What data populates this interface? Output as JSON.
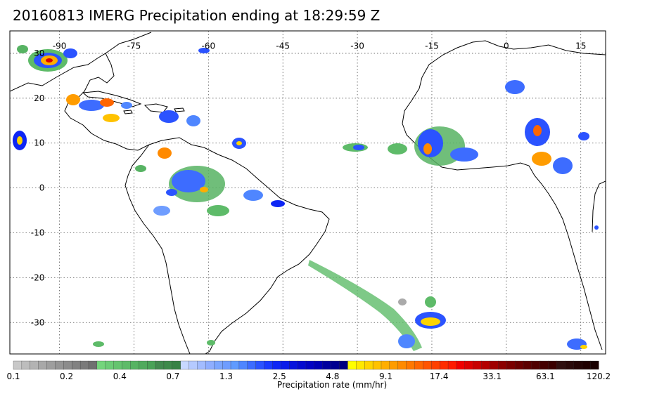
{
  "title": "20160813 IMERG Precipitation ending at 18:29:59 Z",
  "map": {
    "lon_labels": [
      "-90",
      "-75",
      "-60",
      "-45",
      "-30",
      "-15",
      "0",
      "15"
    ],
    "lat_labels": [
      "30",
      "20",
      "10",
      "0",
      "-10",
      "-20",
      "-30"
    ],
    "lon_range": [
      -100,
      20
    ],
    "lat_range": [
      -37,
      35
    ],
    "gridlines": "dotted"
  },
  "colorbar": {
    "label": "Precipitation rate (mm/hr)",
    "tick_labels": [
      "0.1",
      "0.2",
      "0.4",
      "0.7",
      "1.3",
      "2.5",
      "4.8",
      "9.1",
      "17.4",
      "33.1",
      "63.1",
      "120.2"
    ],
    "colors": [
      "#c8c8c8",
      "#bdbdbd",
      "#b3b3b3",
      "#a8a8a8",
      "#9e9e9e",
      "#959595",
      "#8c8c8c",
      "#828282",
      "#7a7a7a",
      "#707070",
      "#74d57c",
      "#6ccc76",
      "#65c46f",
      "#5ebb69",
      "#57b363",
      "#50aa5d",
      "#49a257",
      "#428a4f",
      "#3e8a4b",
      "#378245",
      "#c8d8ff",
      "#b5caff",
      "#a2bcff",
      "#8faeff",
      "#7ca6ff",
      "#6f9dff",
      "#609bff",
      "#4f86ff",
      "#3d6cff",
      "#2b53ff",
      "#1a3bff",
      "#0e26f5",
      "#0a1cea",
      "#0712dd",
      "#050ad0",
      "#0303c3",
      "#0000b6",
      "#00009e",
      "#000090",
      "#000080",
      "#ffff00",
      "#ffe800",
      "#ffd400",
      "#ffc200",
      "#ffae00",
      "#ff9c00",
      "#ff8a00",
      "#ff7800",
      "#ff6600",
      "#ff5400",
      "#ff4000",
      "#ff2c00",
      "#ff1a00",
      "#f00000",
      "#dc0000",
      "#c80000",
      "#b40000",
      "#a00000",
      "#8c0000",
      "#7a0000",
      "#6a0000",
      "#5c0000",
      "#500000",
      "#440000",
      "#3a0000",
      "#301010",
      "#2a0a0a",
      "#240404",
      "#200000",
      "#180000"
    ]
  }
}
